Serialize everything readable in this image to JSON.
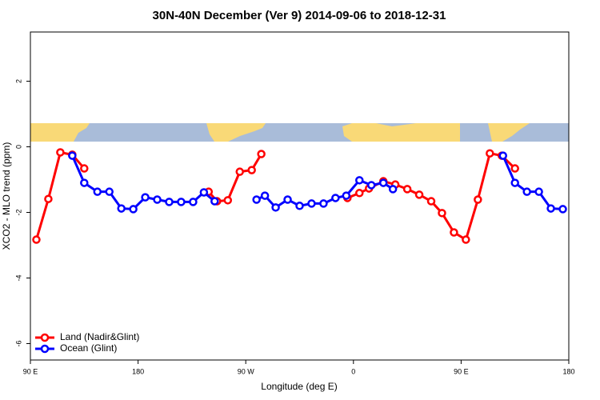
{
  "chart_data": {
    "type": "line",
    "title": "30N-40N December (Ver 9)   2014-09-06 to 2018-12-31",
    "x_label": "Longitude (deg E)",
    "y_label": "XCO2 - MLO trend (ppm)",
    "xlim": [
      90,
      540
    ],
    "xticks": [
      {
        "value": 90,
        "label": "90 E"
      },
      {
        "value": 180,
        "label": "180"
      },
      {
        "value": 270,
        "label": "90 W"
      },
      {
        "value": 360,
        "label": "0"
      },
      {
        "value": 450,
        "label": "90 E"
      },
      {
        "value": 540,
        "label": "180"
      }
    ],
    "ylim": [
      -6.5,
      3.5
    ],
    "yticks": [
      -6,
      -4,
      -2,
      0,
      2
    ],
    "legend": "bottom-left",
    "series": [
      {
        "name": "Land (Nadir&Glint)",
        "color": "#ff0000",
        "x": [
          95,
          105,
          115,
          125,
          135,
          190,
          239,
          246,
          255,
          265,
          275,
          283,
          320,
          355,
          365,
          373,
          385,
          395,
          405,
          415,
          425,
          434,
          444,
          454,
          464,
          474,
          484,
          495
        ],
        "values": [
          -2.83,
          -1.59,
          -0.17,
          -0.24,
          -0.66,
          null,
          -1.37,
          -1.66,
          -1.63,
          -0.76,
          -0.71,
          -0.22,
          null,
          -1.56,
          -1.41,
          -1.27,
          -1.05,
          -1.15,
          -1.29,
          -1.46,
          -1.66,
          -2.02,
          -2.61,
          -2.83,
          -1.61,
          -0.2,
          -0.27,
          -0.66
        ]
      },
      {
        "name": "Ocean (Glint)",
        "color": "#0000ff",
        "x": [
          125,
          135,
          146,
          156,
          166,
          176,
          186,
          196,
          206,
          216,
          226,
          235,
          244,
          262,
          279,
          286,
          295,
          305,
          315,
          325,
          335,
          345,
          354,
          365,
          375,
          385,
          393,
          440,
          485,
          495,
          505,
          515,
          525,
          535
        ],
        "values": [
          -0.27,
          -1.1,
          -1.37,
          -1.37,
          -1.88,
          -1.9,
          -1.54,
          -1.61,
          -1.68,
          -1.68,
          -1.68,
          -1.39,
          -1.66,
          null,
          -1.61,
          -1.49,
          -1.85,
          -1.61,
          -1.8,
          -1.73,
          -1.73,
          -1.56,
          -1.49,
          -1.02,
          -1.17,
          -1.1,
          -1.29,
          null,
          -0.27,
          -1.1,
          -1.37,
          -1.37,
          -1.88,
          -1.9
        ]
      }
    ]
  }
}
